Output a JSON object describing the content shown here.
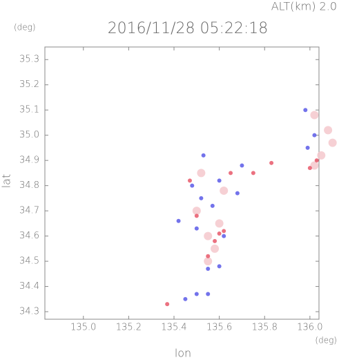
{
  "chart_data": {
    "type": "scatter",
    "title": "2016/11/28 05:22:18",
    "subtitle": "ALT(km) 2.0",
    "y_unit": "(deg)",
    "x_unit": "(deg)",
    "xlabel": "lon",
    "ylabel": "lat",
    "xlim": [
      134.83,
      136.04
    ],
    "ylim": [
      34.27,
      35.35
    ],
    "xticks": [
      {
        "value": 135,
        "label": "135.0"
      },
      135.2,
      135.4,
      135.6,
      135.8,
      {
        "value": 136,
        "label": "136.0"
      }
    ],
    "yticks": [
      34.3,
      34.4,
      34.5,
      34.6,
      34.7,
      34.8,
      34.9,
      {
        "value": 35,
        "label": "35.0"
      },
      35.1,
      35.2,
      35.3
    ],
    "series": [
      {
        "color": "#f4c8cc",
        "x": [
          136.02,
          136.05,
          136.1,
          136.08,
          136.02,
          135.55,
          135.6,
          135.5,
          135.58,
          135.55,
          135.52,
          135.62
        ],
        "values": [
          34.88,
          34.92,
          34.97,
          35.02,
          35.08,
          34.6,
          34.65,
          34.7,
          34.55,
          34.5,
          34.85,
          34.78
        ]
      },
      {
        "color": "#e8586a",
        "x": [
          135.37,
          135.5,
          135.58,
          135.6,
          135.55,
          135.47,
          135.65,
          135.75,
          135.83,
          135.62,
          136.03,
          136.0
        ],
        "values": [
          34.33,
          34.68,
          34.58,
          34.61,
          34.52,
          34.82,
          34.85,
          34.85,
          34.89,
          34.62,
          34.9,
          34.87
        ]
      },
      {
        "color": "#5a5ae8",
        "x": [
          135.45,
          135.5,
          135.55,
          135.48,
          135.52,
          135.6,
          135.68,
          135.5,
          135.62,
          135.55,
          135.6,
          135.57,
          135.98,
          136.02,
          135.99,
          135.42,
          135.53,
          135.7
        ],
        "values": [
          34.35,
          34.37,
          34.37,
          34.8,
          34.75,
          34.82,
          34.77,
          34.63,
          34.6,
          34.47,
          34.48,
          34.72,
          35.1,
          35.0,
          34.95,
          34.66,
          34.92,
          34.88
        ]
      }
    ]
  }
}
